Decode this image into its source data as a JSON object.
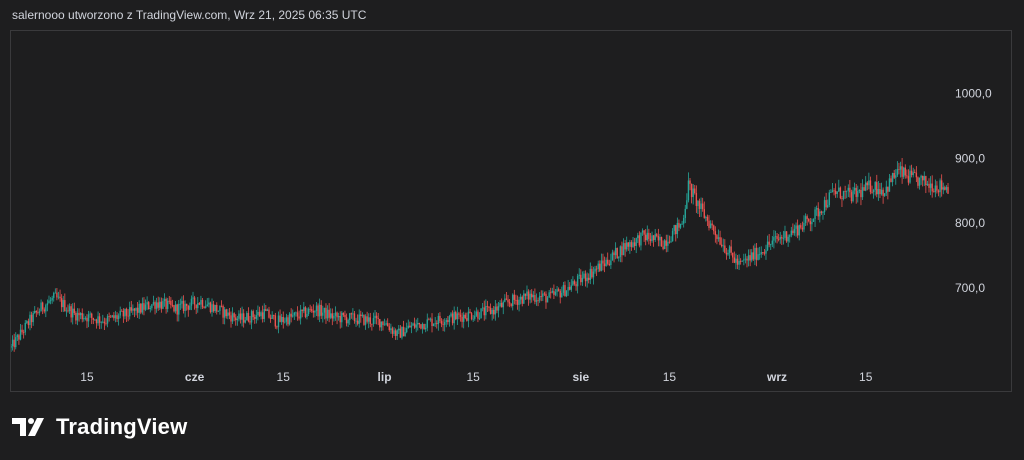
{
  "caption": "salernooo utworzono z TradingView.com, Wrz 21, 2025 06:35 UTC",
  "brand": {
    "name": "TradingView",
    "logo_icon": "tradingview-logo-icon"
  },
  "colors": {
    "background": "#1e1e1f",
    "up": "#26a69a",
    "down": "#ef5350",
    "text": "#d1d4dc",
    "border": "#3a3a3c"
  },
  "chart_data": {
    "type": "candlestick",
    "title": "",
    "xlabel": "",
    "ylabel": "",
    "ylim": [
      600,
      1090
    ],
    "grid": false,
    "y_ticks": [
      {
        "value": 700,
        "label": "700,0"
      },
      {
        "value": 800,
        "label": "800,0"
      },
      {
        "value": 900,
        "label": "900,0"
      },
      {
        "value": 1000,
        "label": "1000,0"
      }
    ],
    "x_ticks": [
      {
        "date": "2025-05-15",
        "label": "15",
        "bold": false
      },
      {
        "date": "2025-06-01",
        "label": "cze",
        "bold": true
      },
      {
        "date": "2025-06-15",
        "label": "15",
        "bold": false
      },
      {
        "date": "2025-07-01",
        "label": "lip",
        "bold": true
      },
      {
        "date": "2025-07-15",
        "label": "15",
        "bold": false
      },
      {
        "date": "2025-08-01",
        "label": "sie",
        "bold": true
      },
      {
        "date": "2025-08-15",
        "label": "15",
        "bold": false
      },
      {
        "date": "2025-09-01",
        "label": "wrz",
        "bold": true
      },
      {
        "date": "2025-09-15",
        "label": "15",
        "bold": false
      }
    ],
    "x_range": [
      "2025-05-03",
      "2025-10-01"
    ],
    "series": [
      {
        "path": [
          [
            "2025-05-03",
            608
          ],
          [
            "2025-05-06",
            650
          ],
          [
            "2025-05-08",
            672
          ],
          [
            "2025-05-10",
            685
          ],
          [
            "2025-05-13",
            660
          ],
          [
            "2025-05-18",
            650
          ],
          [
            "2025-05-22",
            662
          ],
          [
            "2025-05-26",
            678
          ],
          [
            "2025-05-29",
            668
          ],
          [
            "2025-06-02",
            680
          ],
          [
            "2025-06-05",
            665
          ],
          [
            "2025-06-08",
            652
          ],
          [
            "2025-06-12",
            662
          ],
          [
            "2025-06-14",
            648
          ],
          [
            "2025-06-18",
            660
          ],
          [
            "2025-06-20",
            668
          ],
          [
            "2025-06-23",
            655
          ],
          [
            "2025-06-27",
            652
          ],
          [
            "2025-07-01",
            648
          ],
          [
            "2025-07-03",
            628
          ],
          [
            "2025-07-05",
            640
          ],
          [
            "2025-07-08",
            648
          ],
          [
            "2025-07-12",
            655
          ],
          [
            "2025-07-15",
            660
          ],
          [
            "2025-07-18",
            665
          ],
          [
            "2025-07-21",
            680
          ],
          [
            "2025-07-24",
            688
          ],
          [
            "2025-07-27",
            685
          ],
          [
            "2025-07-30",
            700
          ],
          [
            "2025-08-02",
            720
          ],
          [
            "2025-08-05",
            740
          ],
          [
            "2025-08-08",
            765
          ],
          [
            "2025-08-11",
            780
          ],
          [
            "2025-08-14",
            770
          ],
          [
            "2025-08-17",
            800
          ],
          [
            "2025-08-18",
            858
          ],
          [
            "2025-08-20",
            820
          ],
          [
            "2025-08-22",
            790
          ],
          [
            "2025-08-24",
            760
          ],
          [
            "2025-08-26",
            735
          ],
          [
            "2025-08-29",
            755
          ],
          [
            "2025-09-01",
            775
          ],
          [
            "2025-09-04",
            790
          ],
          [
            "2025-09-07",
            812
          ],
          [
            "2025-09-10",
            848
          ],
          [
            "2025-09-13",
            842
          ],
          [
            "2025-09-16",
            858
          ],
          [
            "2025-09-18",
            850
          ],
          [
            "2025-09-20",
            880
          ],
          [
            "2025-09-22",
            870
          ],
          [
            "2025-09-25",
            860
          ],
          [
            "2025-09-28",
            855
          ]
        ]
      }
    ]
  }
}
